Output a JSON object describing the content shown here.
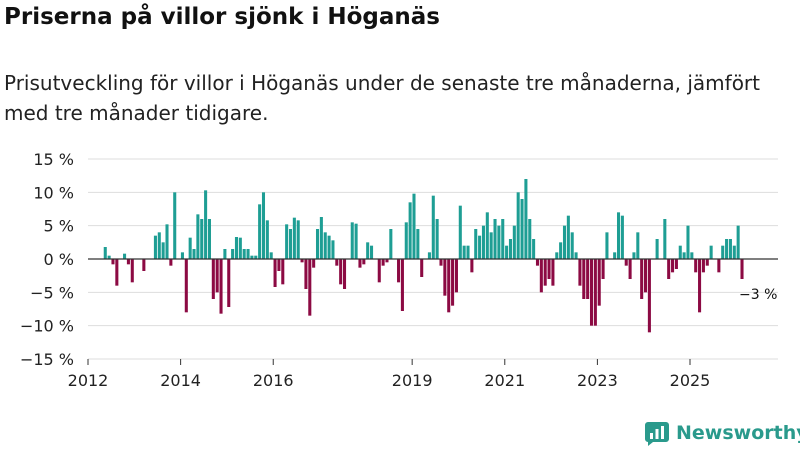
{
  "header": {
    "title": "Priserna på villor sjönk i Höganäs",
    "subtitle": "Prisutveckling för villor i Höganäs under de senaste tre månaderna, jämfört med tre månader tidigare."
  },
  "brand": {
    "name": "Newsworthy",
    "icon": "bar-chart-logo-icon"
  },
  "colors": {
    "positive": "#1e9e94",
    "negative": "#8c0a43",
    "grid": "#dddddd",
    "zero": "#333333",
    "axis": "#333333"
  },
  "chart_data": {
    "type": "bar",
    "title": "Priserna på villor sjönk i Höganäs",
    "subtitle": "Prisutveckling för villor i Höganäs under de senaste tre månaderna, jämfört med tre månader tidigare.",
    "xlabel": "",
    "ylabel": "",
    "unit": "%",
    "ylim": [
      -15,
      15
    ],
    "yticks": [
      15,
      10,
      5,
      0,
      -5,
      -10,
      -15
    ],
    "ytick_labels": [
      "15 %",
      "10 %",
      "5 %",
      "0 %",
      "−5 %",
      "−10 %",
      "−15 %"
    ],
    "xlim": [
      2012.0,
      2026.9
    ],
    "xticks": [
      2012,
      2014,
      2016,
      2019,
      2021,
      2023,
      2025
    ],
    "xtick_labels": [
      "2012",
      "2014",
      "2016",
      "2019",
      "2021",
      "2023",
      "2025"
    ],
    "grid": true,
    "start": [
      2012,
      5
    ],
    "values": [
      1.8,
      0.5,
      -0.8,
      -4,
      0,
      0.8,
      -0.8,
      -3.5,
      0,
      0,
      -1.8,
      0,
      0,
      3.5,
      4,
      2.5,
      5.2,
      -1,
      10,
      0,
      1,
      -8,
      3.2,
      1.5,
      6.7,
      6,
      10.3,
      6,
      -6,
      -5,
      -8.2,
      1.5,
      -7.2,
      1.5,
      3.3,
      3.2,
      1.5,
      1.5,
      0.5,
      0.5,
      8.2,
      10,
      5.8,
      1,
      -4.2,
      -1.8,
      -3.8,
      5.2,
      4.5,
      6.2,
      5.8,
      -0.5,
      -4.5,
      -8.5,
      -1.3,
      4.5,
      6.3,
      4,
      3.5,
      2.8,
      -1,
      -3.8,
      -4.5,
      0,
      5.5,
      5.3,
      -1.3,
      -0.8,
      2.5,
      2,
      0,
      -3.5,
      -1,
      -0.5,
      4.5,
      0,
      -3.5,
      -7.8,
      5.5,
      8.5,
      9.8,
      4.5,
      -2.7,
      0,
      1,
      9.5,
      6,
      -1,
      -5.5,
      -8,
      -7,
      -5,
      8,
      2,
      2,
      -2,
      4.5,
      3.5,
      5,
      7,
      4,
      6,
      5,
      6,
      2,
      3,
      5,
      10,
      9,
      12,
      6,
      3,
      -1,
      -5,
      -4,
      -3,
      -4,
      1,
      2.5,
      5,
      6.5,
      4,
      1,
      -4,
      -6,
      -6,
      -10,
      -10,
      -7,
      -3,
      4,
      0,
      1,
      7,
      6.5,
      -1,
      -3,
      1,
      4,
      -6,
      -5,
      -11,
      0,
      3,
      0,
      6,
      -3,
      -2,
      -1.5,
      2,
      1,
      5,
      1,
      -2,
      -8,
      -2,
      -1,
      2,
      0,
      -2,
      2,
      3,
      3,
      2,
      5,
      -3
    ],
    "annotations": [
      {
        "text": "−3 %",
        "target": "last-value"
      }
    ]
  }
}
